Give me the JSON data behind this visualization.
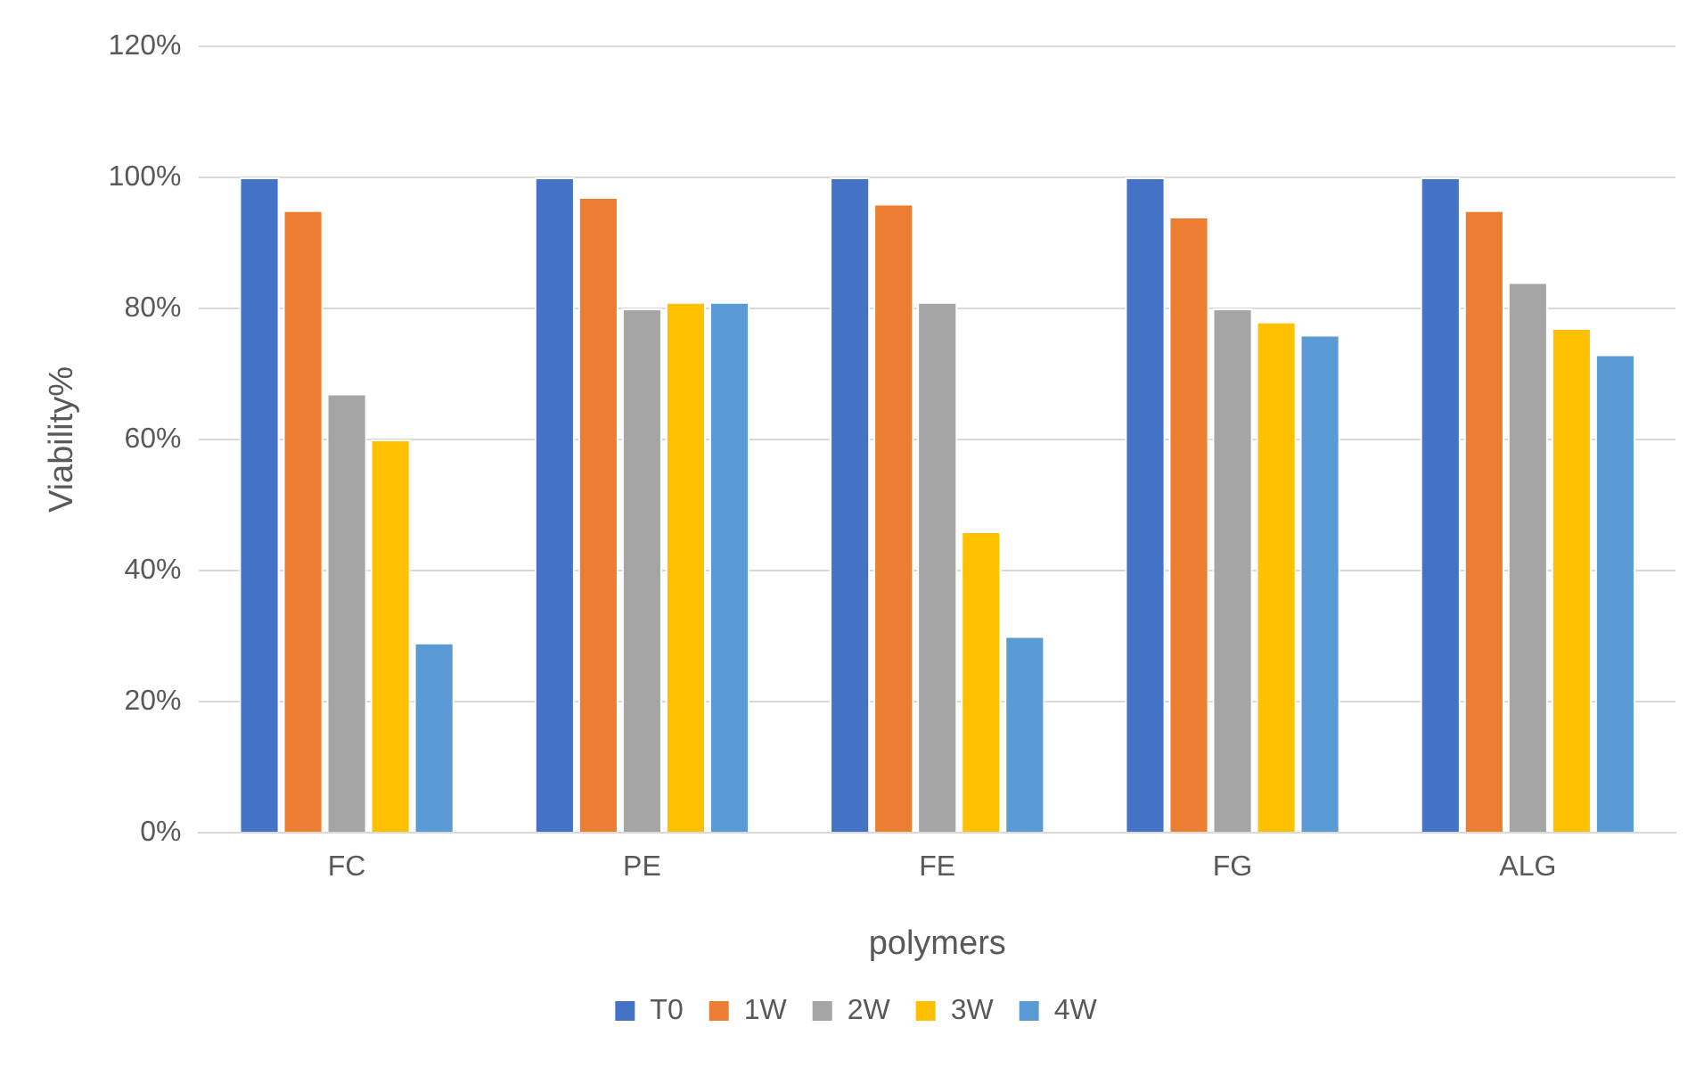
{
  "chart_data": {
    "type": "bar",
    "xlabel": "polymers",
    "ylabel": "Viability%",
    "categories": [
      "FC",
      "PE",
      "FE",
      "FG",
      "ALG"
    ],
    "series": [
      {
        "name": "T0",
        "color": "#4472c4",
        "values": [
          100,
          100,
          100,
          100,
          100
        ]
      },
      {
        "name": "1W",
        "color": "#ed7d31",
        "values": [
          95,
          97,
          96,
          94,
          95
        ]
      },
      {
        "name": "2W",
        "color": "#a5a5a5",
        "values": [
          67,
          80,
          81,
          80,
          84
        ]
      },
      {
        "name": "3W",
        "color": "#ffc000",
        "values": [
          60,
          81,
          46,
          78,
          77
        ]
      },
      {
        "name": "4W",
        "color": "#5b9bd5",
        "values": [
          29,
          81,
          30,
          76,
          73
        ]
      }
    ],
    "ylim": [
      0,
      120
    ],
    "yticks": [
      {
        "value": 0,
        "label": "0%"
      },
      {
        "value": 20,
        "label": "20%"
      },
      {
        "value": 40,
        "label": "40%"
      },
      {
        "value": 60,
        "label": "60%"
      },
      {
        "value": 80,
        "label": "80%"
      },
      {
        "value": 100,
        "label": "100%"
      },
      {
        "value": 120,
        "label": "120%"
      }
    ],
    "grid": "y",
    "legend": "bottom"
  }
}
